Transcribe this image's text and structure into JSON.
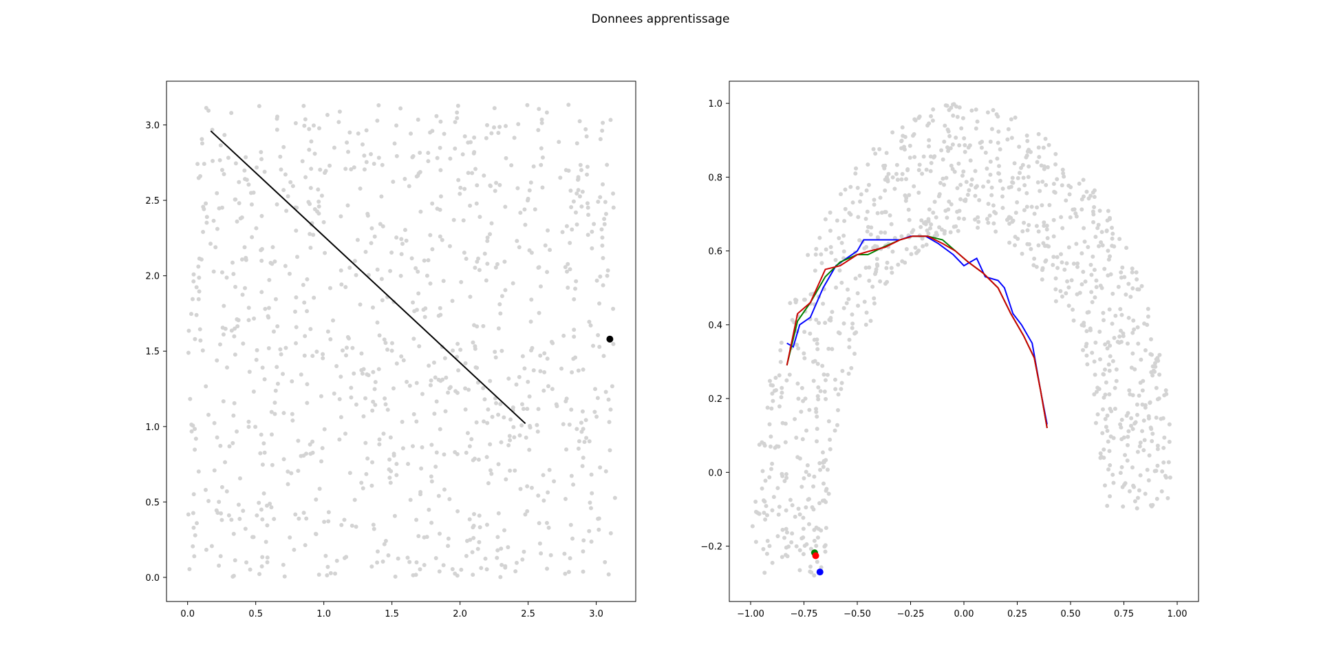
{
  "figure": {
    "title": "Donnees apprentissage"
  },
  "chart_data": [
    {
      "type": "scatter",
      "title": "",
      "xlabel": "",
      "ylabel": "",
      "xlim": [
        -0.155,
        3.29
      ],
      "ylim": [
        -0.16,
        3.29
      ],
      "x_ticks": [
        0.0,
        0.5,
        1.0,
        1.5,
        2.0,
        2.5,
        3.0
      ],
      "x_tick_labels": [
        "0.0",
        "0.5",
        "1.0",
        "1.5",
        "2.0",
        "2.5",
        "3.0"
      ],
      "y_ticks": [
        0.0,
        0.5,
        1.0,
        1.5,
        2.0,
        2.5,
        3.0
      ],
      "y_tick_labels": [
        "0.0",
        "0.5",
        "1.0",
        "1.5",
        "2.0",
        "2.5",
        "3.0"
      ],
      "grid": false,
      "background_points": {
        "description": "uniform random cloud",
        "x_range": [
          0.0,
          3.14
        ],
        "y_range": [
          0.0,
          3.14
        ],
        "count": 1000,
        "color": "#d3d3d3"
      },
      "series": [
        {
          "type": "line",
          "color": "#000000",
          "x": [
            0.17,
            2.48
          ],
          "y": [
            2.96,
            1.02
          ]
        },
        {
          "type": "point",
          "color": "#000000",
          "x": [
            3.1
          ],
          "y": [
            1.58
          ]
        }
      ]
    },
    {
      "type": "scatter",
      "title": "",
      "xlabel": "",
      "ylabel": "",
      "xlim": [
        -1.1,
        1.1
      ],
      "ylim": [
        -0.35,
        1.06
      ],
      "x_ticks": [
        -1.0,
        -0.75,
        -0.5,
        -0.25,
        0.0,
        0.25,
        0.5,
        0.75,
        1.0
      ],
      "x_tick_labels": [
        "−1.00",
        "−0.75",
        "−0.50",
        "−0.25",
        "0.00",
        "0.25",
        "0.50",
        "0.75",
        "1.00"
      ],
      "y_ticks": [
        -0.2,
        0.0,
        0.2,
        0.4,
        0.6,
        0.8,
        1.0
      ],
      "y_tick_labels": [
        "−0.2",
        "0.0",
        "0.2",
        "0.4",
        "0.6",
        "0.8",
        "1.0"
      ],
      "grid": false,
      "background_points": {
        "description": "crescent / half-annulus cloud",
        "outer_radius": 1.0,
        "inner_radius": 0.65,
        "center": [
          0.0,
          0.0
        ],
        "color": "#d3d3d3",
        "count": 1000
      },
      "series": [
        {
          "type": "line",
          "color": "#0000ff",
          "x": [
            -0.83,
            -0.8,
            -0.77,
            -0.72,
            -0.66,
            -0.6,
            -0.55,
            -0.5,
            -0.47,
            -0.4,
            -0.36,
            -0.3,
            -0.25,
            -0.18,
            -0.12,
            -0.05,
            0.0,
            0.06,
            0.1,
            0.16,
            0.19,
            0.23,
            0.27,
            0.32,
            0.36,
            0.39
          ],
          "y": [
            0.35,
            0.34,
            0.4,
            0.42,
            0.5,
            0.56,
            0.58,
            0.6,
            0.63,
            0.63,
            0.63,
            0.63,
            0.64,
            0.64,
            0.62,
            0.59,
            0.56,
            0.58,
            0.53,
            0.52,
            0.5,
            0.43,
            0.4,
            0.35,
            0.22,
            0.13
          ]
        },
        {
          "type": "line",
          "color": "#008000",
          "x": [
            -0.83,
            -0.78,
            -0.72,
            -0.65,
            -0.58,
            -0.5,
            -0.45,
            -0.38,
            -0.3,
            -0.24,
            -0.17,
            -0.1,
            -0.04,
            0.02,
            0.09,
            0.16,
            0.22,
            0.28,
            0.33,
            0.36,
            0.39
          ],
          "y": [
            0.29,
            0.41,
            0.46,
            0.53,
            0.57,
            0.59,
            0.59,
            0.61,
            0.63,
            0.64,
            0.64,
            0.63,
            0.6,
            0.57,
            0.54,
            0.5,
            0.43,
            0.37,
            0.31,
            0.22,
            0.12
          ]
        },
        {
          "type": "line",
          "color": "#cc0000",
          "x": [
            -0.83,
            -0.78,
            -0.72,
            -0.65,
            -0.58,
            -0.5,
            -0.44,
            -0.37,
            -0.3,
            -0.24,
            -0.17,
            -0.1,
            -0.04,
            0.02,
            0.09,
            0.16,
            0.22,
            0.28,
            0.33,
            0.36,
            0.39
          ],
          "y": [
            0.29,
            0.43,
            0.46,
            0.55,
            0.56,
            0.59,
            0.6,
            0.61,
            0.63,
            0.64,
            0.64,
            0.62,
            0.6,
            0.57,
            0.54,
            0.5,
            0.43,
            0.37,
            0.31,
            0.22,
            0.12
          ]
        },
        {
          "type": "point",
          "color": "#008000",
          "x": [
            -0.7
          ],
          "y": [
            -0.218
          ]
        },
        {
          "type": "point",
          "color": "#ff0000",
          "x": [
            -0.695
          ],
          "y": [
            -0.226
          ]
        },
        {
          "type": "point",
          "color": "#0000ff",
          "x": [
            -0.675
          ],
          "y": [
            -0.27
          ]
        }
      ]
    }
  ]
}
